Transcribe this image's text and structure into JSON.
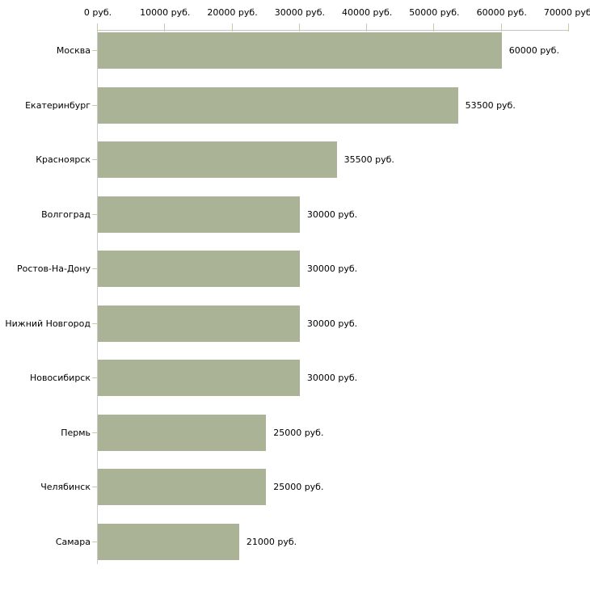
{
  "chart_data": {
    "type": "bar",
    "orientation": "horizontal",
    "title": "",
    "xlabel": "",
    "ylabel": "",
    "unit": "руб.",
    "categories": [
      "Москва",
      "Екатеринбург",
      "Красноярск",
      "Волгоград",
      "Ростов-На-Дону",
      "Нижний Новгород",
      "Новосибирск",
      "Пермь",
      "Челябинск",
      "Самара"
    ],
    "values": [
      60000,
      53500,
      35500,
      30000,
      30000,
      30000,
      30000,
      25000,
      25000,
      21000
    ],
    "bar_labels": [
      "60000 руб.",
      "53500 руб.",
      "35500 руб.",
      "30000 руб.",
      "30000 руб.",
      "30000 руб.",
      "30000 руб.",
      "25000 руб.",
      "25000 руб.",
      "21000 руб."
    ],
    "xlim": [
      0,
      70000
    ],
    "x_ticks": [
      {
        "value": 0,
        "label": "0 руб."
      },
      {
        "value": 10000,
        "label": "10000 руб."
      },
      {
        "value": 20000,
        "label": "20000 руб."
      },
      {
        "value": 30000,
        "label": "30000 руб."
      },
      {
        "value": 40000,
        "label": "40000 руб."
      },
      {
        "value": 50000,
        "label": "50000 руб."
      },
      {
        "value": 60000,
        "label": "60000 руб."
      },
      {
        "value": 70000,
        "label": "70000 руб."
      }
    ],
    "grid": false,
    "legend_position": "none",
    "colors": {
      "bar": "#aab396",
      "axis_line": "#c3c3c3",
      "tick_mark": "#c9caa2",
      "text": "#000000",
      "background": "#ffffff"
    }
  }
}
